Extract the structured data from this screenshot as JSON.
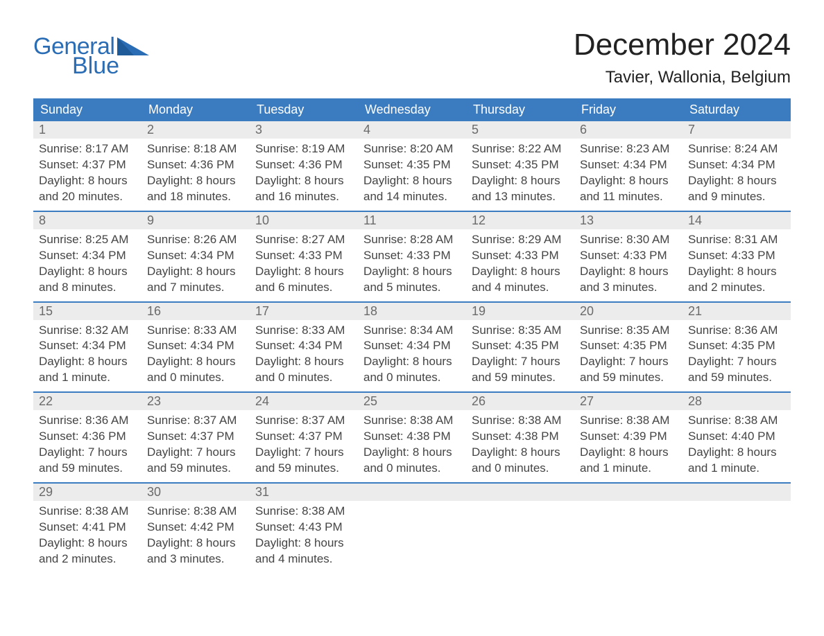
{
  "logo": {
    "word1": "General",
    "word2": "Blue",
    "color": "#2a6db5"
  },
  "title": "December 2024",
  "location": "Tavier, Wallonia, Belgium",
  "colors": {
    "header_bg": "#3b7bbf",
    "header_text": "#ffffff",
    "daynum_bg": "#ececec",
    "daynum_text": "#6a6a6a",
    "body_text": "#444444",
    "rule": "#3b7bbf",
    "page_bg": "#ffffff"
  },
  "typography": {
    "title_fontsize": 44,
    "location_fontsize": 24,
    "header_fontsize": 18,
    "daynum_fontsize": 18,
    "body_fontsize": 17
  },
  "columns": [
    "Sunday",
    "Monday",
    "Tuesday",
    "Wednesday",
    "Thursday",
    "Friday",
    "Saturday"
  ],
  "weeks": [
    [
      {
        "n": "1",
        "sunrise": "8:17 AM",
        "sunset": "4:37 PM",
        "daylight": "8 hours and 20 minutes."
      },
      {
        "n": "2",
        "sunrise": "8:18 AM",
        "sunset": "4:36 PM",
        "daylight": "8 hours and 18 minutes."
      },
      {
        "n": "3",
        "sunrise": "8:19 AM",
        "sunset": "4:36 PM",
        "daylight": "8 hours and 16 minutes."
      },
      {
        "n": "4",
        "sunrise": "8:20 AM",
        "sunset": "4:35 PM",
        "daylight": "8 hours and 14 minutes."
      },
      {
        "n": "5",
        "sunrise": "8:22 AM",
        "sunset": "4:35 PM",
        "daylight": "8 hours and 13 minutes."
      },
      {
        "n": "6",
        "sunrise": "8:23 AM",
        "sunset": "4:34 PM",
        "daylight": "8 hours and 11 minutes."
      },
      {
        "n": "7",
        "sunrise": "8:24 AM",
        "sunset": "4:34 PM",
        "daylight": "8 hours and 9 minutes."
      }
    ],
    [
      {
        "n": "8",
        "sunrise": "8:25 AM",
        "sunset": "4:34 PM",
        "daylight": "8 hours and 8 minutes."
      },
      {
        "n": "9",
        "sunrise": "8:26 AM",
        "sunset": "4:34 PM",
        "daylight": "8 hours and 7 minutes."
      },
      {
        "n": "10",
        "sunrise": "8:27 AM",
        "sunset": "4:33 PM",
        "daylight": "8 hours and 6 minutes."
      },
      {
        "n": "11",
        "sunrise": "8:28 AM",
        "sunset": "4:33 PM",
        "daylight": "8 hours and 5 minutes."
      },
      {
        "n": "12",
        "sunrise": "8:29 AM",
        "sunset": "4:33 PM",
        "daylight": "8 hours and 4 minutes."
      },
      {
        "n": "13",
        "sunrise": "8:30 AM",
        "sunset": "4:33 PM",
        "daylight": "8 hours and 3 minutes."
      },
      {
        "n": "14",
        "sunrise": "8:31 AM",
        "sunset": "4:33 PM",
        "daylight": "8 hours and 2 minutes."
      }
    ],
    [
      {
        "n": "15",
        "sunrise": "8:32 AM",
        "sunset": "4:34 PM",
        "daylight": "8 hours and 1 minute."
      },
      {
        "n": "16",
        "sunrise": "8:33 AM",
        "sunset": "4:34 PM",
        "daylight": "8 hours and 0 minutes."
      },
      {
        "n": "17",
        "sunrise": "8:33 AM",
        "sunset": "4:34 PM",
        "daylight": "8 hours and 0 minutes."
      },
      {
        "n": "18",
        "sunrise": "8:34 AM",
        "sunset": "4:34 PM",
        "daylight": "8 hours and 0 minutes."
      },
      {
        "n": "19",
        "sunrise": "8:35 AM",
        "sunset": "4:35 PM",
        "daylight": "7 hours and 59 minutes."
      },
      {
        "n": "20",
        "sunrise": "8:35 AM",
        "sunset": "4:35 PM",
        "daylight": "7 hours and 59 minutes."
      },
      {
        "n": "21",
        "sunrise": "8:36 AM",
        "sunset": "4:35 PM",
        "daylight": "7 hours and 59 minutes."
      }
    ],
    [
      {
        "n": "22",
        "sunrise": "8:36 AM",
        "sunset": "4:36 PM",
        "daylight": "7 hours and 59 minutes."
      },
      {
        "n": "23",
        "sunrise": "8:37 AM",
        "sunset": "4:37 PM",
        "daylight": "7 hours and 59 minutes."
      },
      {
        "n": "24",
        "sunrise": "8:37 AM",
        "sunset": "4:37 PM",
        "daylight": "7 hours and 59 minutes."
      },
      {
        "n": "25",
        "sunrise": "8:38 AM",
        "sunset": "4:38 PM",
        "daylight": "8 hours and 0 minutes."
      },
      {
        "n": "26",
        "sunrise": "8:38 AM",
        "sunset": "4:38 PM",
        "daylight": "8 hours and 0 minutes."
      },
      {
        "n": "27",
        "sunrise": "8:38 AM",
        "sunset": "4:39 PM",
        "daylight": "8 hours and 1 minute."
      },
      {
        "n": "28",
        "sunrise": "8:38 AM",
        "sunset": "4:40 PM",
        "daylight": "8 hours and 1 minute."
      }
    ],
    [
      {
        "n": "29",
        "sunrise": "8:38 AM",
        "sunset": "4:41 PM",
        "daylight": "8 hours and 2 minutes."
      },
      {
        "n": "30",
        "sunrise": "8:38 AM",
        "sunset": "4:42 PM",
        "daylight": "8 hours and 3 minutes."
      },
      {
        "n": "31",
        "sunrise": "8:38 AM",
        "sunset": "4:43 PM",
        "daylight": "8 hours and 4 minutes."
      },
      null,
      null,
      null,
      null
    ]
  ],
  "labels": {
    "sunrise_prefix": "Sunrise: ",
    "sunset_prefix": "Sunset: ",
    "daylight_prefix": "Daylight: "
  }
}
